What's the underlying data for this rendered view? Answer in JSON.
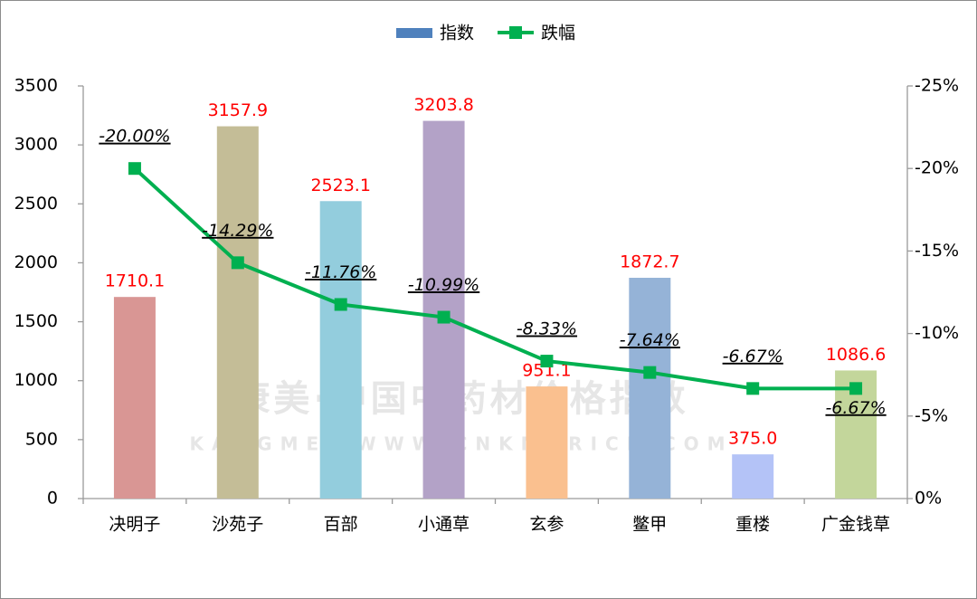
{
  "chart_data": {
    "type": "bar_line",
    "watermark": [
      "康美·中国中药材价格指数",
      "KANGMEI WWW.CNKMPRICE.COM"
    ],
    "categories": [
      "决明子",
      "沙苑子",
      "百部",
      "小通草",
      "玄参",
      "鳖甲",
      "重楼",
      "广金钱草"
    ],
    "series": [
      {
        "name": "指数",
        "type": "bar",
        "color": "#4f81bd",
        "colors": [
          "#d99694",
          "#c4bd97",
          "#93cddd",
          "#b3a2c7",
          "#fac08f",
          "#95b3d7",
          "#b4c3f7",
          "#c3d69b"
        ],
        "label_color": "#ff0000",
        "values": [
          1710.1,
          3157.9,
          2523.1,
          3203.8,
          951.1,
          1872.7,
          375.0,
          1086.6
        ],
        "value_labels": [
          "1710.1",
          "3157.9",
          "2523.1",
          "3203.8",
          "951.1",
          "1872.7",
          "375.0",
          "1086.6"
        ]
      },
      {
        "name": "跌幅",
        "type": "line",
        "axis": "y2",
        "color": "#00b050",
        "values": [
          -20.0,
          -14.29,
          -11.76,
          -10.99,
          -8.33,
          -7.64,
          -6.67,
          -6.67
        ],
        "value_labels": [
          "-20.00%",
          "-14.29%",
          "-11.76%",
          "-10.99%",
          "-8.33%",
          "-7.64%",
          "-6.67%",
          "-6.67%"
        ]
      }
    ],
    "ylim": [
      0,
      3500
    ],
    "yticks": [
      0,
      500,
      1000,
      1500,
      2000,
      2500,
      3000,
      3500
    ],
    "y2lim": [
      0,
      -25
    ],
    "y2ticks": [
      {
        "value": 0,
        "label": "0%"
      },
      {
        "value": -5,
        "label": "-5%"
      },
      {
        "value": -10,
        "label": "-10%"
      },
      {
        "value": -15,
        "label": "-15%"
      },
      {
        "value": -20,
        "label": "-20%"
      },
      {
        "value": -25,
        "label": "-25%"
      }
    ],
    "grid": false,
    "legend": "top"
  }
}
